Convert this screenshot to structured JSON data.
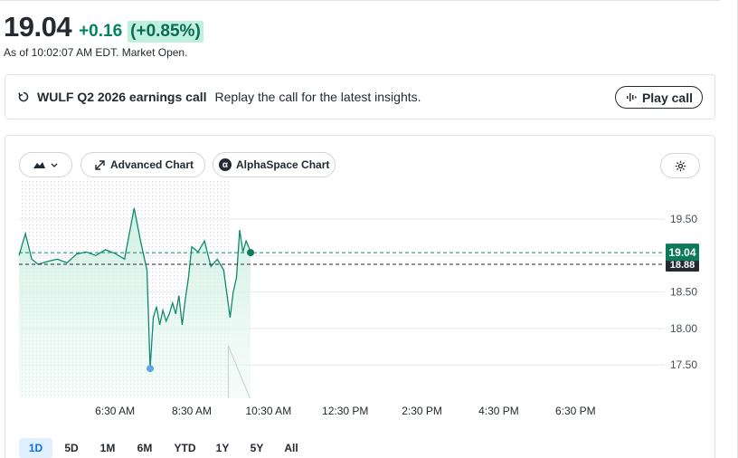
{
  "quote": {
    "price": "19.04",
    "change": "+0.16",
    "change_percent": "(+0.85%)",
    "as_of": "As of 10:02:07 AM EDT. Market Open."
  },
  "earnings_call": {
    "title": "WULF Q2 2026 earnings call",
    "subtitle": "Replay the call for the latest insights.",
    "play_label": "Play call"
  },
  "chart_toolbar": {
    "type_icon": "mountain-chart-icon",
    "advanced_label": "Advanced Chart",
    "alphaspace_label": "AlphaSpace Chart",
    "alphaspace_glyph": "α",
    "settings_icon": "gear-icon"
  },
  "colors": {
    "up": "#008463",
    "up_bg": "#bff0df",
    "line": "#0e8a6b",
    "price_tag": "#0b7a5a",
    "prev_close_tag": "#232a31",
    "marker_low": "#5ba8e0",
    "active_range": "#0f69ff"
  },
  "chart_data": {
    "type": "line",
    "title": "",
    "xlabel": "",
    "ylabel": "",
    "x_ticks": [
      "6:30 AM",
      "8:30 AM",
      "10:30 AM",
      "12:30 PM",
      "2:30 PM",
      "4:30 PM",
      "6:30 PM"
    ],
    "y_ticks": [
      "19.50",
      "19.00",
      "18.50",
      "18.00",
      "17.50"
    ],
    "ylim": [
      17.3,
      19.9
    ],
    "xlim": [
      "4:00 AM",
      "8:00 PM"
    ],
    "current_price_label": "19.04",
    "previous_close": 18.88,
    "previous_close_label": "18.88",
    "grid": true,
    "series": [
      {
        "x": [
          "4:00 AM",
          "4:10 AM",
          "4:20 AM",
          "4:30 AM",
          "4:45 AM",
          "5:00 AM",
          "5:15 AM",
          "5:30 AM",
          "5:45 AM",
          "6:00 AM",
          "6:15 AM",
          "6:30 AM",
          "6:45 AM",
          "7:00 AM",
          "7:10 AM",
          "7:20 AM",
          "7:25 AM",
          "7:30 AM",
          "7:35 AM",
          "7:40 AM",
          "7:45 AM",
          "7:50 AM",
          "7:55 AM",
          "8:00 AM",
          "8:05 AM",
          "8:10 AM",
          "8:15 AM",
          "8:20 AM",
          "8:25 AM",
          "8:30 AM",
          "8:40 AM",
          "8:50 AM",
          "9:00 AM",
          "9:10 AM",
          "9:20 AM",
          "9:30 AM",
          "9:35 AM",
          "9:40 AM",
          "9:45 AM",
          "9:50 AM",
          "9:55 AM",
          "10:00 AM",
          "10:02 AM"
        ],
        "values": [
          19.0,
          19.3,
          18.95,
          18.88,
          18.92,
          18.95,
          18.9,
          19.02,
          19.05,
          19.0,
          19.08,
          19.03,
          18.95,
          19.65,
          19.2,
          18.8,
          17.45,
          18.15,
          18.3,
          18.05,
          18.25,
          18.1,
          18.2,
          18.35,
          18.2,
          18.45,
          18.05,
          18.4,
          18.7,
          19.12,
          19.05,
          19.2,
          18.85,
          18.95,
          18.8,
          18.15,
          18.5,
          18.7,
          19.35,
          19.05,
          19.2,
          19.1,
          19.04
        ]
      }
    ]
  },
  "ranges": [
    "1D",
    "5D",
    "1M",
    "6M",
    "YTD",
    "1Y",
    "5Y",
    "All"
  ],
  "active_range": "1D"
}
